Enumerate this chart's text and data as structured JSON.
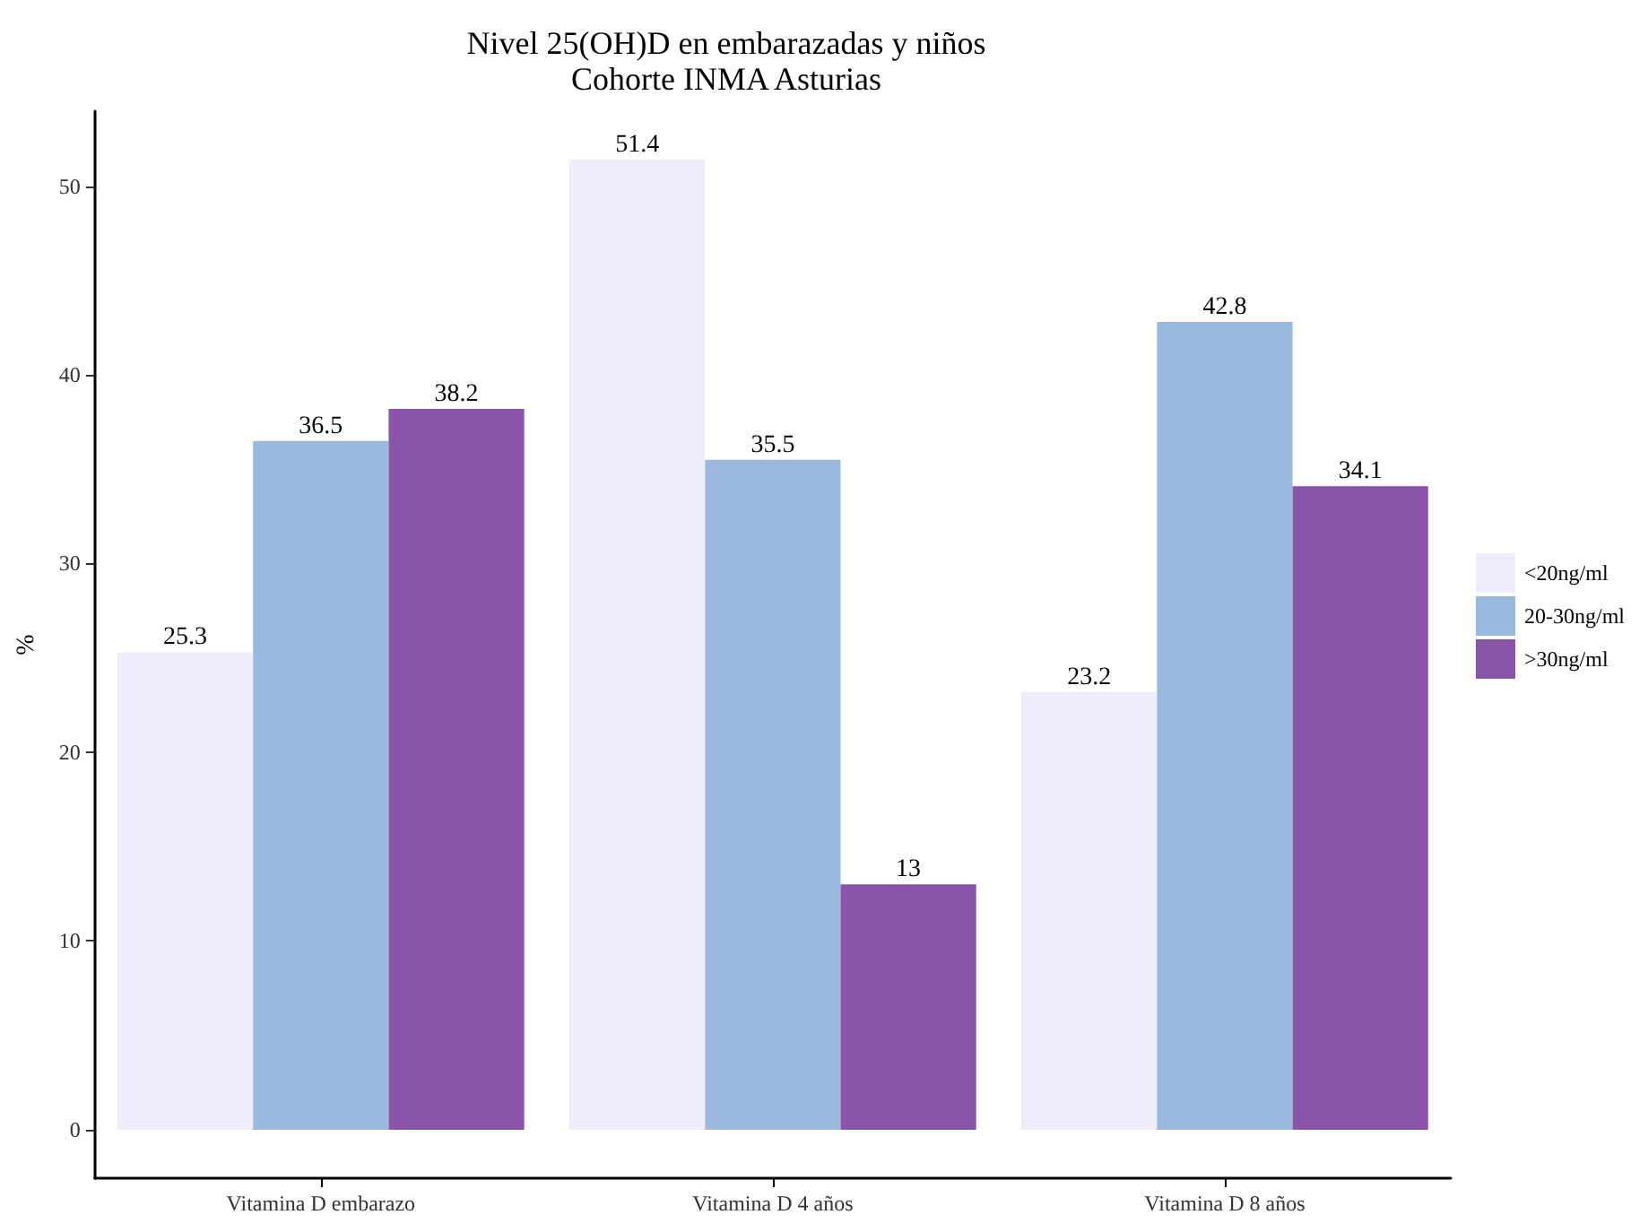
{
  "chart_data": {
    "type": "bar",
    "title": "Nivel 25(OH)D en embarazadas y niños",
    "subtitle": "Cohorte INMA Asturias",
    "ylabel": "%",
    "categories": [
      "Vitamina D embarazo",
      "Vitamina D 4 años",
      "Vitamina D 8 años"
    ],
    "series": [
      {
        "name": "<20ng/ml",
        "color": "#efedfc",
        "values": [
          25.3,
          51.4,
          23.2
        ]
      },
      {
        "name": "20-30ng/ml",
        "color": "#9ab9dd",
        "values": [
          36.5,
          35.5,
          42.8
        ]
      },
      {
        "name": ">30ng/ml",
        "color": "#8a55a9",
        "values": [
          38.2,
          13,
          34.1
        ]
      }
    ],
    "ylim": [
      -2.57,
      53.97
    ],
    "yticks": [
      0,
      10,
      20,
      30,
      40,
      50
    ],
    "grid": false,
    "legend": "right",
    "data_labels": true
  }
}
